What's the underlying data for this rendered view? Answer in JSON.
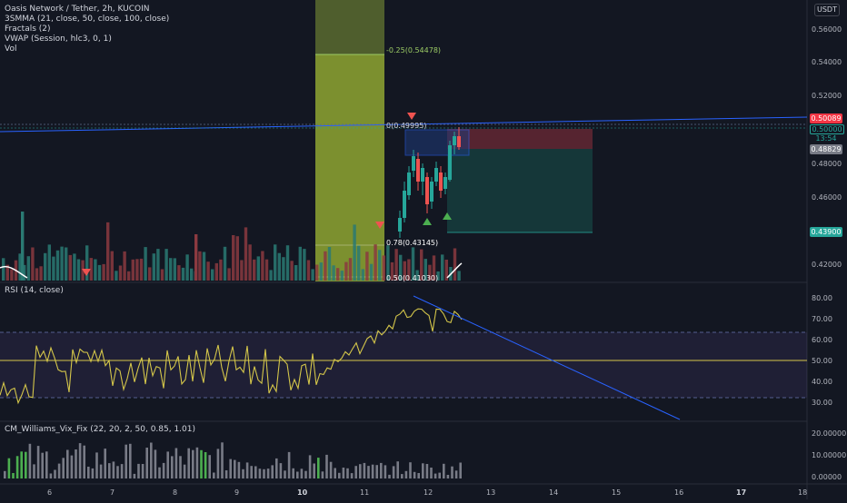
{
  "header": {
    "symbol_title": "Oasis Network / Tether, 2h, KUCOIN",
    "indicators": [
      "3SMMA (21, close, 50, close, 100, close)",
      "Fractals (2)",
      "VWAP (Session, hlc3, 0, 1)",
      "Vol"
    ],
    "currency": "USDT"
  },
  "price_axis": {
    "ticks": [
      "0.56000",
      "0.54000",
      "0.52000",
      "0.48000",
      "0.46000",
      "0.42000"
    ],
    "badges": {
      "current": "0.50089",
      "level": "0.50000",
      "countdown": "13:54",
      "mid": "0.48829",
      "stop": "0.43900"
    },
    "colors": {
      "current": "#f23645",
      "level": "#26a69a",
      "mid": "#787b86",
      "stop": "#26a69a"
    }
  },
  "fib_labels": {
    "upper": "-0.25(0.54478)",
    "top": "0(0.49995)",
    "mid": "0.78(0.43145)",
    "bottom": "0.50(0.41030)"
  },
  "rsi": {
    "label": "RSI (14, close)",
    "ticks": [
      "80.00",
      "70.00",
      "60.00",
      "50.00",
      "40.00",
      "30.00"
    ]
  },
  "williams": {
    "label": "CM_Williams_Vix_Fix (22, 20, 2, 50, 0.85, 1.01)",
    "ticks": [
      "20.00000",
      "10.00000",
      "0.00000"
    ]
  },
  "time_axis": {
    "labels": [
      "6",
      "7",
      "8",
      "9",
      "10",
      "11",
      "12",
      "13",
      "14",
      "15",
      "16",
      "17",
      "18"
    ]
  }
}
